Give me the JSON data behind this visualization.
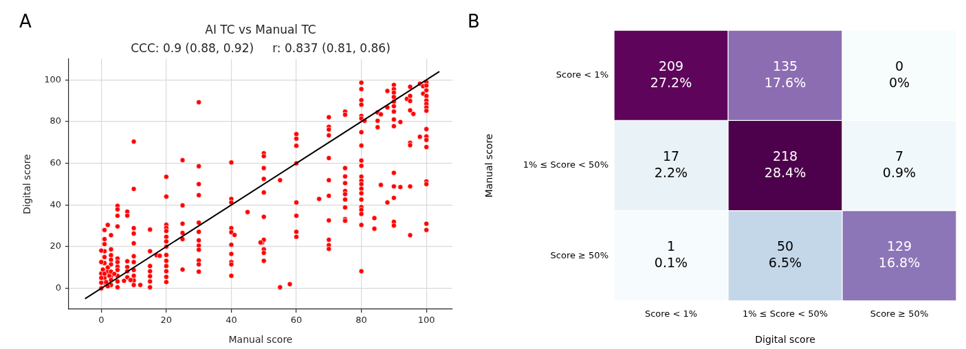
{
  "chart_data": [
    {
      "type": "scatter",
      "title": "AI TC vs Manual TC",
      "subtitle": "CCC: 0.9 (0.88, 0.92)     r: 0.837 (0.81, 0.86)",
      "xlabel": "Manual score",
      "ylabel": "Digital score",
      "annotations": [
        "A"
      ],
      "xlim": [
        -10,
        108
      ],
      "ylim": [
        -10,
        110
      ],
      "xticks": [
        0,
        20,
        40,
        60,
        80,
        100
      ],
      "yticks": [
        0,
        20,
        40,
        60,
        80,
        100
      ],
      "grid": true,
      "series": [
        {
          "type": "scatter",
          "marker": "circle",
          "color": "#ff0000",
          "x": [
            30,
            30,
            30,
            30,
            30,
            30,
            30,
            30,
            30,
            30,
            30,
            30,
            10,
            10,
            10,
            10,
            10,
            10,
            10,
            10,
            10,
            10,
            10,
            20,
            20,
            20,
            20,
            20,
            20,
            20,
            20,
            20,
            20,
            20,
            20,
            20,
            20,
            25,
            25,
            25,
            25,
            25,
            25,
            5,
            5,
            5,
            5,
            5,
            5,
            5,
            5,
            5,
            5,
            5,
            8,
            8,
            8,
            8,
            8,
            8,
            15,
            15,
            15,
            15,
            15,
            15,
            15,
            12,
            17,
            18,
            3,
            3,
            3,
            3,
            3,
            3,
            3,
            2,
            1,
            1,
            1,
            1,
            1,
            1,
            1,
            0,
            0,
            0,
            0,
            0,
            1,
            2,
            1.5,
            2.5,
            0.5,
            2,
            3,
            1,
            2,
            0,
            3,
            4,
            7,
            9,
            40,
            40,
            40,
            40,
            40,
            40,
            40,
            40,
            40,
            40,
            41,
            45,
            49.5,
            50,
            50,
            50,
            50,
            50,
            50,
            50,
            50,
            50,
            50,
            49,
            55,
            55,
            58,
            60,
            60,
            60,
            60,
            60,
            60,
            60,
            60,
            67,
            70,
            70,
            70,
            70,
            70,
            70,
            70,
            70,
            70,
            70,
            70,
            75,
            75,
            75,
            75,
            75,
            75,
            75,
            75,
            75,
            75,
            75,
            80,
            80,
            80,
            80,
            80,
            80,
            80,
            80,
            80,
            80,
            80,
            80,
            80,
            80,
            80,
            80,
            80,
            80,
            80,
            80,
            80,
            81,
            84,
            84,
            85,
            85,
            85,
            86,
            86,
            88,
            88,
            88,
            90,
            90,
            90,
            90,
            90,
            90,
            90,
            90,
            90,
            90,
            90,
            90,
            90,
            90,
            92,
            92,
            94,
            95,
            95,
            95,
            95,
            95,
            95,
            95,
            95,
            96,
            98,
            98,
            99,
            99,
            100,
            100,
            100,
            100,
            100,
            100,
            100,
            100,
            100,
            100,
            100,
            100,
            100,
            100,
            100,
            100
          ],
          "values": [
            89.3,
            58.6,
            50,
            44.7,
            31.5,
            27.1,
            23,
            20.5,
            18.5,
            13.4,
            11.5,
            8,
            70.4,
            47.7,
            28.9,
            26.3,
            21.6,
            15.4,
            12.6,
            8.8,
            6,
            3.8,
            1.6,
            53.5,
            44,
            30.5,
            29,
            27.5,
            24.7,
            22.5,
            20,
            16,
            13.2,
            10.7,
            8.2,
            5.5,
            3,
            61.5,
            39.8,
            31,
            26.6,
            23.6,
            9,
            39.6,
            37.9,
            34.8,
            29.7,
            14.3,
            12.6,
            10.4,
            8.8,
            6,
            3.3,
            0.5,
            36.8,
            34.9,
            13,
            10.2,
            8.2,
            5.3,
            28.2,
            17.8,
            10.7,
            8.2,
            5.8,
            3.3,
            0.5,
            1.6,
            15.9,
            15.6,
            25.5,
            18.7,
            15.9,
            13.7,
            11.5,
            5.5,
            1.6,
            30.4,
            28,
            23.6,
            21.2,
            17.8,
            15,
            12.1,
            2.7,
            18.1,
            12.6,
            7.1,
            2.7,
            0,
            5,
            8,
            3,
            6,
            9,
            1,
            4,
            7,
            10,
            5,
            8,
            6.9,
            3.6,
            4,
            60.4,
            42.9,
            41.2,
            28.9,
            26.9,
            20.9,
            16.5,
            12.6,
            11.5,
            6,
            25.6,
            36.6,
            22,
            64.8,
            63.4,
            57.7,
            52.5,
            46,
            34.3,
            23.3,
            18.7,
            17,
            13.2,
            22,
            51.9,
            0.5,
            2,
            74,
            71.8,
            68.4,
            60,
            41.2,
            34.8,
            27.1,
            24.7,
            42.9,
            82.1,
            77.5,
            76.2,
            73.4,
            62.5,
            51.9,
            44.4,
            32.6,
            23.3,
            20.7,
            18.9,
            84.8,
            83.3,
            57.7,
            53.7,
            50.5,
            46.7,
            45.2,
            42.6,
            38.8,
            33.2,
            32.4,
            98.7,
            95.6,
            90.3,
            88.1,
            82.7,
            81.5,
            74.9,
            68.5,
            61.3,
            58.8,
            53.6,
            51.6,
            50,
            47.8,
            45.6,
            42.6,
            39,
            37.7,
            35.7,
            30.4,
            8.2,
            80.4,
            33.7,
            28.6,
            84.4,
            80.4,
            77.3,
            83.5,
            49.6,
            94.7,
            86.8,
            41.2,
            97.6,
            95.6,
            93.9,
            91.8,
            89.6,
            87.4,
            84.8,
            81,
            77.8,
            55.4,
            48.9,
            43.4,
            31.9,
            30.1,
            79.8,
            48.6,
            90.9,
            96.7,
            92.3,
            89.9,
            85.4,
            69.8,
            68.7,
            48.9,
            25.5,
            83.7,
            98.2,
            72.7,
            97,
            93.4,
            98.9,
            97.3,
            95,
            92.3,
            90.1,
            88.5,
            86.8,
            85.2,
            76.4,
            72.9,
            71.2,
            67.8,
            51.3,
            50,
            31,
            28
          ]
        },
        {
          "type": "line",
          "marker": "none",
          "color": "#000000",
          "x": [
            -5,
            104
          ],
          "values": [
            -5,
            104
          ]
        }
      ]
    },
    {
      "type": "heatmap",
      "xlabel": "Digital score",
      "ylabel": "Manual score",
      "annotations": [
        "B",
        "27.2%",
        "17.6%",
        "0%",
        "2.2%",
        "28.4%",
        "0.9%",
        "0.1%",
        "6.5%",
        "16.8%"
      ],
      "data_labels": true,
      "categories": [
        "Score < 1%",
        "1% ≤ Score < 50%",
        "Score ≥ 50%"
      ],
      "y_categories": [
        "Score < 1%",
        "1% ≤ Score < 50%",
        "Score ≥ 50%"
      ],
      "cells": [
        [
          209,
          135,
          0
        ],
        [
          17,
          218,
          7
        ],
        [
          1,
          50,
          129
        ]
      ]
    }
  ]
}
